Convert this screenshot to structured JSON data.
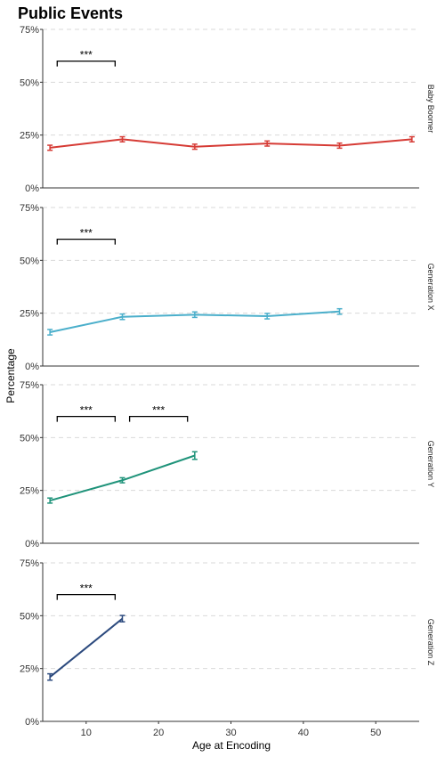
{
  "chart_data": {
    "type": "line",
    "title": "Public Events",
    "xlabel": "Age at Encoding",
    "ylabel": "Percentage",
    "xlim": [
      4,
      56
    ],
    "ylim": [
      0,
      75
    ],
    "x_ticks": [
      10,
      20,
      30,
      40,
      50
    ],
    "y_ticks": [
      "0%",
      "25%",
      "50%",
      "75%"
    ],
    "y_tick_values": [
      0,
      25,
      50,
      75
    ],
    "grid": "horizontal-dashed",
    "panels": [
      {
        "label": "Baby Boomer",
        "color": "#d63b35",
        "x": [
          5,
          15,
          25,
          35,
          45,
          55
        ],
        "y": [
          19,
          23,
          19.5,
          21,
          20,
          23
        ],
        "err": [
          1.2,
          1.2,
          1.2,
          1.2,
          1.2,
          1.2
        ],
        "brackets": [
          {
            "from": 6,
            "to": 14,
            "level": 60,
            "label": "***"
          }
        ]
      },
      {
        "label": "Generation X",
        "color": "#4bafcb",
        "x": [
          5,
          15,
          25,
          35,
          45
        ],
        "y": [
          16,
          23.3,
          24.3,
          23.6,
          25.8
        ],
        "err": [
          1.3,
          1.3,
          1.3,
          1.3,
          1.3
        ],
        "brackets": [
          {
            "from": 6,
            "to": 14,
            "level": 60,
            "label": "***"
          }
        ]
      },
      {
        "label": "Generation Y",
        "color": "#1f937a",
        "x": [
          5,
          15,
          25
        ],
        "y": [
          20.2,
          29.8,
          41.5
        ],
        "err": [
          1.2,
          1.2,
          1.8
        ],
        "brackets": [
          {
            "from": 6,
            "to": 14,
            "level": 60,
            "label": "***"
          },
          {
            "from": 16,
            "to": 24,
            "level": 60,
            "label": "***"
          }
        ]
      },
      {
        "label": "Generation Z",
        "color": "#2c4a7e",
        "x": [
          5,
          15
        ],
        "y": [
          21,
          48.6
        ],
        "err": [
          1.5,
          1.5
        ],
        "brackets": [
          {
            "from": 6,
            "to": 14,
            "level": 60,
            "label": "***"
          }
        ]
      }
    ]
  }
}
